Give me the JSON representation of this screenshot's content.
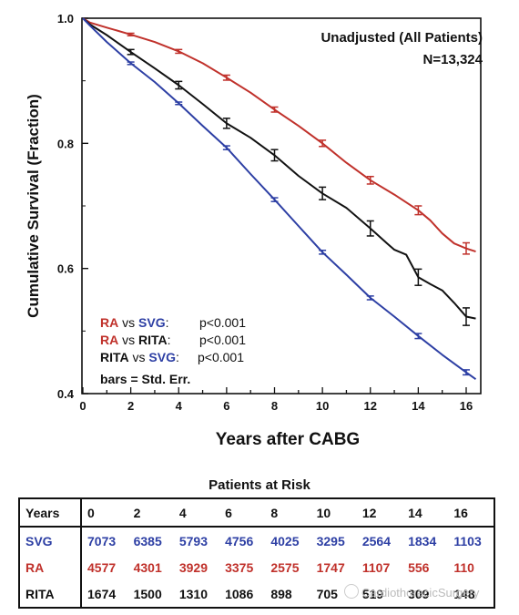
{
  "chart_data": {
    "type": "line",
    "title": "Unadjusted (All Patients)",
    "subtitle": "N=13,324",
    "xlabel": "Years after CABG",
    "ylabel": "Cumulative Survival  (Fraction)",
    "xlim": [
      0,
      16.5
    ],
    "ylim": [
      0.4,
      1.0
    ],
    "x_ticks": [
      0,
      2,
      4,
      6,
      8,
      10,
      12,
      14,
      16
    ],
    "y_ticks": [
      0.4,
      0.6,
      0.8,
      1.0
    ],
    "y_tick_labels": [
      "0.4",
      "0.6",
      "0.8",
      "1.0"
    ],
    "grid": false,
    "series": [
      {
        "name": "RA",
        "color": "#c0312b",
        "x": [
          0,
          0.3,
          1,
          2,
          3,
          4,
          5,
          6,
          7,
          8,
          9,
          10,
          11,
          12,
          13,
          14,
          14.5,
          15,
          15.5,
          16,
          16.4
        ],
        "y": [
          1.0,
          0.993,
          0.985,
          0.974,
          0.962,
          0.947,
          0.928,
          0.905,
          0.881,
          0.854,
          0.828,
          0.8,
          0.769,
          0.741,
          0.718,
          0.693,
          0.677,
          0.656,
          0.64,
          0.632,
          0.627
        ],
        "error_x": [
          2,
          4,
          6,
          8,
          10,
          12,
          14,
          16
        ],
        "error_y": [
          0.974,
          0.947,
          0.905,
          0.854,
          0.8,
          0.741,
          0.693,
          0.632
        ],
        "error_se": [
          0.002,
          0.003,
          0.004,
          0.004,
          0.005,
          0.006,
          0.007,
          0.009
        ]
      },
      {
        "name": "RITA",
        "color": "#111111",
        "x": [
          0,
          0.3,
          1,
          2,
          3,
          4,
          5,
          6,
          7,
          8,
          9,
          10,
          11,
          12,
          12.7,
          13,
          13.5,
          14,
          14.5,
          15,
          15.5,
          16,
          16.4
        ],
        "y": [
          1.0,
          0.99,
          0.973,
          0.946,
          0.92,
          0.893,
          0.863,
          0.832,
          0.809,
          0.781,
          0.748,
          0.72,
          0.697,
          0.664,
          0.64,
          0.63,
          0.622,
          0.586,
          0.575,
          0.565,
          0.545,
          0.523,
          0.52
        ],
        "error_x": [
          2,
          4,
          6,
          8,
          10,
          12,
          14,
          16
        ],
        "error_y": [
          0.946,
          0.893,
          0.832,
          0.781,
          0.72,
          0.664,
          0.586,
          0.523
        ],
        "error_se": [
          0.004,
          0.006,
          0.008,
          0.009,
          0.01,
          0.012,
          0.013,
          0.014
        ]
      },
      {
        "name": "SVG",
        "color": "#2d3fa4",
        "x": [
          0,
          0.3,
          1,
          2,
          3,
          4,
          5,
          6,
          7,
          8,
          9,
          10,
          11,
          12,
          13,
          14,
          15,
          16,
          16.4
        ],
        "y": [
          1.0,
          0.988,
          0.962,
          0.928,
          0.898,
          0.864,
          0.828,
          0.793,
          0.751,
          0.71,
          0.668,
          0.626,
          0.59,
          0.553,
          0.523,
          0.492,
          0.462,
          0.434,
          0.423
        ],
        "error_x": [
          2,
          4,
          6,
          8,
          10,
          12,
          14,
          16
        ],
        "error_y": [
          0.928,
          0.864,
          0.793,
          0.71,
          0.626,
          0.553,
          0.492,
          0.434
        ],
        "error_se": [
          0.002,
          0.002,
          0.003,
          0.003,
          0.003,
          0.003,
          0.004,
          0.004
        ]
      }
    ],
    "legend_position": "lower-left",
    "annotations": {
      "comparisons": [
        {
          "a": "RA",
          "b": "SVG",
          "p": "p<0.001"
        },
        {
          "a": "RA",
          "b": "RITA",
          "p": "p<0.001"
        },
        {
          "a": "RITA",
          "b": "SVG",
          "p": "p<0.001"
        }
      ],
      "note": "bars = Std. Err."
    }
  },
  "risk_table": {
    "title": "Patients at Risk",
    "header_label": "Years",
    "years": [
      "0",
      "2",
      "4",
      "6",
      "8",
      "10",
      "12",
      "14",
      "16"
    ],
    "rows": [
      {
        "label": "SVG",
        "color": "#2d3fa4",
        "values": [
          "7073",
          "6385",
          "5793",
          "4756",
          "4025",
          "3295",
          "2564",
          "1834",
          "1103"
        ]
      },
      {
        "label": "RA",
        "color": "#c0312b",
        "values": [
          "4577",
          "4301",
          "3929",
          "3375",
          "2575",
          "1747",
          "1107",
          "556",
          "110"
        ]
      },
      {
        "label": "RITA",
        "color": "#111111",
        "values": [
          "1674",
          "1500",
          "1310",
          "1086",
          "898",
          "705",
          "519",
          "309",
          "148"
        ]
      }
    ]
  },
  "watermark": "CardiothoracicSurgery"
}
